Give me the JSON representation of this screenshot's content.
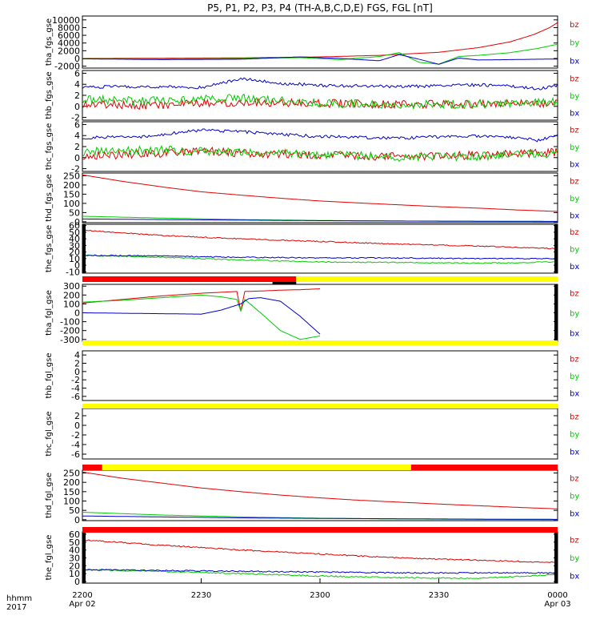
{
  "title": "P5, P1, P2, P3, P4 (TH-A,B,C,D,E) FGS, FGL [nT]",
  "colors": {
    "bz": "#e00000",
    "by": "#00cc00",
    "bx": "#0000cc",
    "bar_red": "#ff0000",
    "bar_yellow": "#ffff00",
    "bar_black": "#000000"
  },
  "x_axis": {
    "row_label_1": "hhmm",
    "row_label_2": "2017",
    "ticks": [
      {
        "t": 0,
        "time": "2200",
        "date": "Apr 02"
      },
      {
        "t": 30,
        "time": "2230",
        "date": ""
      },
      {
        "t": 60,
        "time": "2300",
        "date": ""
      },
      {
        "t": 90,
        "time": "2330",
        "date": ""
      },
      {
        "t": 120,
        "time": "0000",
        "date": "Apr 03"
      }
    ]
  },
  "chart_data": [
    {
      "type": "line",
      "ylabel": "tha_fgs_gse",
      "ylim": [
        -2500,
        11000
      ],
      "yticks": [
        -2000,
        0,
        2000,
        4000,
        6000,
        8000,
        10000
      ],
      "ytick_labels": [
        "-2000",
        "0",
        "2000",
        "4000",
        "6000",
        "8000",
        "10000"
      ],
      "series": [
        {
          "name": "bz",
          "x": [
            0,
            20,
            40,
            60,
            75,
            90,
            100,
            108,
            114,
            118,
            120
          ],
          "y": [
            0,
            60,
            150,
            400,
            800,
            1600,
            2800,
            4300,
            6200,
            8000,
            9300
          ]
        },
        {
          "name": "by",
          "x": [
            0,
            20,
            40,
            55,
            65,
            75,
            80,
            85,
            90,
            95,
            100,
            108,
            115,
            120
          ],
          "y": [
            -50,
            -100,
            0,
            200,
            -300,
            500,
            1500,
            -1000,
            -1500,
            500,
            800,
            1500,
            2600,
            3700
          ]
        },
        {
          "name": "bx",
          "x": [
            0,
            20,
            40,
            55,
            65,
            75,
            80,
            85,
            90,
            95,
            100,
            108,
            115,
            120
          ],
          "y": [
            -100,
            -300,
            -200,
            400,
            0,
            -600,
            1000,
            -200,
            -1500,
            100,
            -400,
            -300,
            -200,
            -150
          ]
        }
      ]
    },
    {
      "type": "line",
      "ylabel": "thb_fgs_gse",
      "ylim": [
        -2.5,
        6.5
      ],
      "yticks": [
        -2,
        0,
        2,
        4,
        6
      ],
      "ytick_labels": [
        "-2",
        "0",
        "2",
        "4",
        "6"
      ],
      "series": [
        {
          "name": "bz",
          "x": [
            0,
            20,
            40,
            60,
            80,
            100,
            120
          ],
          "y": [
            0.4,
            0.2,
            0.8,
            0.6,
            0.3,
            0.5,
            0.6
          ]
        },
        {
          "name": "by",
          "x": [
            0,
            20,
            40,
            60,
            80,
            100,
            120
          ],
          "y": [
            1.2,
            1.0,
            1.5,
            0.6,
            0.3,
            0.4,
            0.8
          ]
        },
        {
          "name": "bx",
          "x": [
            0,
            15,
            30,
            40,
            50,
            60,
            70,
            80,
            90,
            100,
            110,
            115,
            120
          ],
          "y": [
            3.5,
            3.6,
            3.4,
            5.0,
            4.2,
            3.8,
            3.7,
            3.6,
            3.7,
            3.9,
            3.6,
            3.2,
            3.8
          ]
        }
      ]
    },
    {
      "type": "line",
      "ylabel": "thc_fgs_gse",
      "ylim": [
        -2.5,
        6.5
      ],
      "yticks": [
        -2,
        0,
        2,
        4,
        6
      ],
      "ytick_labels": [
        "-2",
        "0",
        "2",
        "4",
        "6"
      ],
      "series": [
        {
          "name": "bz",
          "x": [
            0,
            20,
            30,
            40,
            60,
            80,
            100,
            120
          ],
          "y": [
            0.4,
            0.7,
            1.3,
            0.8,
            0.5,
            0.2,
            0.4,
            1.0
          ]
        },
        {
          "name": "by",
          "x": [
            0,
            20,
            40,
            60,
            80,
            100,
            120
          ],
          "y": [
            1.0,
            1.4,
            0.9,
            0.5,
            0.1,
            0.2,
            0.8
          ]
        },
        {
          "name": "bx",
          "x": [
            0,
            15,
            30,
            40,
            50,
            60,
            70,
            80,
            90,
            100,
            110,
            115,
            120
          ],
          "y": [
            3.6,
            3.8,
            5.0,
            4.7,
            4.2,
            3.8,
            3.7,
            3.5,
            3.8,
            3.9,
            3.6,
            3.1,
            4.2
          ]
        }
      ]
    },
    {
      "type": "line",
      "ylabel": "thd_fgs_gse",
      "ylim": [
        -5,
        265
      ],
      "yticks": [
        0,
        50,
        100,
        150,
        200,
        250
      ],
      "ytick_labels": [
        "0",
        "50",
        "100",
        "150",
        "200",
        "250"
      ],
      "series": [
        {
          "name": "bz",
          "x": [
            0,
            10,
            20,
            30,
            40,
            50,
            60,
            70,
            80,
            90,
            100,
            110,
            120
          ],
          "y": [
            255,
            220,
            190,
            163,
            145,
            128,
            113,
            102,
            92,
            82,
            74,
            64,
            56
          ]
        },
        {
          "name": "by",
          "x": [
            0,
            20,
            40,
            60,
            80,
            100,
            120
          ],
          "y": [
            30,
            20,
            12,
            7,
            4,
            2,
            1
          ]
        },
        {
          "name": "bx",
          "x": [
            0,
            20,
            40,
            60,
            80,
            100,
            120
          ],
          "y": [
            15,
            12,
            9,
            6,
            4,
            3,
            2
          ]
        }
      ]
    },
    {
      "type": "line",
      "ylabel": "the_fgs_gse",
      "ylim": [
        -12,
        62
      ],
      "yticks": [
        -10,
        0,
        10,
        20,
        30,
        40,
        50,
        60
      ],
      "ytick_labels": [
        "-10",
        "0",
        "10",
        "20",
        "30",
        "40",
        "50",
        "60"
      ],
      "series": [
        {
          "name": "bz",
          "x": [
            0,
            20,
            40,
            60,
            80,
            100,
            120
          ],
          "y": [
            53,
            45,
            40,
            36,
            32,
            29,
            25
          ]
        },
        {
          "name": "by",
          "x": [
            0,
            20,
            40,
            60,
            80,
            100,
            120
          ],
          "y": [
            15,
            12,
            8,
            5,
            4,
            3,
            5
          ]
        },
        {
          "name": "bx",
          "x": [
            0,
            20,
            40,
            60,
            80,
            100,
            120
          ],
          "y": [
            15,
            14,
            12,
            11,
            11,
            10,
            10
          ]
        }
      ]
    },
    {
      "type": "line",
      "ylabel": "tha_fgl_gse",
      "ylim": [
        -320,
        320
      ],
      "yticks": [
        -300,
        -200,
        -100,
        0,
        100,
        200,
        300
      ],
      "ytick_labels": [
        "-300",
        "-200",
        "-100",
        "0",
        "100",
        "200",
        "300"
      ],
      "series": [
        {
          "name": "bz",
          "x": [
            0,
            10,
            20,
            30,
            39,
            40,
            41,
            45,
            50,
            55,
            60
          ],
          "y": [
            110,
            150,
            190,
            220,
            240,
            20,
            240,
            245,
            255,
            260,
            270
          ]
        },
        {
          "name": "by",
          "x": [
            0,
            10,
            20,
            30,
            35,
            39,
            40,
            41,
            45,
            50,
            55,
            60
          ],
          "y": [
            120,
            140,
            170,
            200,
            180,
            150,
            20,
            150,
            0,
            -200,
            -300,
            -260
          ]
        },
        {
          "name": "bx",
          "x": [
            0,
            10,
            20,
            30,
            35,
            40,
            42,
            45,
            50,
            55,
            60
          ],
          "y": [
            0,
            -5,
            -10,
            -15,
            30,
            100,
            160,
            170,
            130,
            -40,
            -240
          ]
        }
      ]
    },
    {
      "type": "line",
      "ylabel": "thb_fgl_gse",
      "ylim": [
        -7,
        5
      ],
      "yticks": [
        -6,
        -4,
        -2,
        0,
        2,
        4
      ],
      "ytick_labels": [
        "-6",
        "-4",
        "-2",
        "0",
        "2",
        "4"
      ],
      "series": []
    },
    {
      "type": "line",
      "ylabel": "thc_fgl_gse",
      "ylim": [
        -7,
        3.5
      ],
      "yticks": [
        -6,
        -4,
        -2,
        0,
        2
      ],
      "ytick_labels": [
        "-6",
        "-4",
        "-2",
        "0",
        "2"
      ],
      "series": []
    },
    {
      "type": "line",
      "ylabel": "thd_fgl_gse",
      "ylim": [
        -5,
        265
      ],
      "yticks": [
        0,
        50,
        100,
        150,
        200,
        250
      ],
      "ytick_labels": [
        "0",
        "50",
        "100",
        "150",
        "200",
        "250"
      ],
      "series": [
        {
          "name": "bz",
          "x": [
            0,
            10,
            20,
            30,
            40,
            50,
            60,
            70,
            80,
            90,
            100,
            110,
            120
          ],
          "y": [
            255,
            222,
            196,
            170,
            150,
            132,
            117,
            104,
            94,
            84,
            75,
            66,
            58
          ]
        },
        {
          "name": "by",
          "x": [
            0,
            20,
            40,
            60,
            80,
            100,
            120
          ],
          "y": [
            40,
            25,
            15,
            8,
            4,
            2,
            1
          ]
        },
        {
          "name": "bx",
          "x": [
            0,
            20,
            40,
            60,
            80,
            100,
            120
          ],
          "y": [
            20,
            15,
            10,
            7,
            5,
            3,
            2
          ]
        }
      ]
    },
    {
      "type": "line",
      "ylabel": "the_fgl_gse",
      "ylim": [
        -2,
        63
      ],
      "yticks": [
        0,
        10,
        20,
        30,
        40,
        50,
        60
      ],
      "ytick_labels": [
        "0",
        "10",
        "20",
        "30",
        "40",
        "50",
        "60"
      ],
      "series": [
        {
          "name": "bz",
          "x": [
            0,
            20,
            40,
            60,
            80,
            100,
            120
          ],
          "y": [
            53,
            46,
            40,
            35,
            30,
            27,
            24
          ]
        },
        {
          "name": "by",
          "x": [
            0,
            20,
            40,
            60,
            80,
            100,
            120
          ],
          "y": [
            15,
            13,
            10,
            7,
            5,
            4,
            9
          ]
        },
        {
          "name": "bx",
          "x": [
            0,
            20,
            40,
            60,
            80,
            100,
            120
          ],
          "y": [
            15,
            14,
            13,
            12,
            11,
            11,
            11
          ]
        }
      ]
    }
  ],
  "status_bars": [
    {
      "after_panel": 4,
      "segments": [
        {
          "t0": 0,
          "t1": 54,
          "color": "red"
        },
        {
          "t0": 54,
          "t1": 120,
          "color": "yellow"
        },
        {
          "t0": 48,
          "t1": 54,
          "color": "black",
          "lower": true
        }
      ]
    },
    {
      "after_panel": 5,
      "segments": [
        {
          "t0": 0,
          "t1": 120,
          "color": "yellow"
        }
      ]
    },
    {
      "after_panel": 6,
      "segments": [
        {
          "t0": 0,
          "t1": 120,
          "color": "yellow"
        }
      ]
    },
    {
      "after_panel": 7,
      "segments": [
        {
          "t0": 0,
          "t1": 5,
          "color": "red"
        },
        {
          "t0": 5,
          "t1": 83,
          "color": "yellow"
        },
        {
          "t0": 83,
          "t1": 120,
          "color": "red"
        }
      ]
    },
    {
      "after_panel": 8,
      "segments": [
        {
          "t0": 0,
          "t1": 120,
          "color": "red"
        }
      ]
    }
  ],
  "legend": [
    "bz",
    "by",
    "bx"
  ]
}
